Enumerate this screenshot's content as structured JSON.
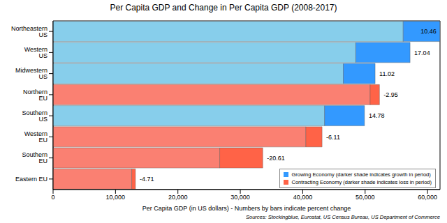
{
  "chart_data": {
    "type": "bar",
    "orientation": "horizontal",
    "stacked": true,
    "title": "Per Capita GDP and Change in Per Capita GDP (2008-2017)",
    "x_label": "Per Capita GDP (in US dollars) - Numbers by bars indicate percent change",
    "source": "Sources: Stockingblue, Eurostat, US Census Bureau, US Department of Commerce",
    "categories": [
      "Northeastern US",
      "Western US",
      "Midwestern US",
      "Northern EU",
      "Southern US",
      "Western EU",
      "Southern EU",
      "Eastern EU"
    ],
    "series": [
      {
        "name": "Growing Economy (darker shade indicates growth in period)",
        "color": "#3399ff",
        "base": {
          "color": "#87ceeb",
          "values": [
            56100,
            48500,
            46500,
            null,
            43500,
            null,
            null,
            null
          ]
        },
        "values": [
          5870,
          8700,
          5100,
          null,
          6400,
          null,
          null,
          null
        ]
      },
      {
        "name": "Contracting Economy (darker shade indicates loss in period)",
        "color": "#ff6347",
        "base": {
          "color": "#fa8072",
          "values": [
            null,
            null,
            null,
            50800,
            null,
            40500,
            26700,
            12600
          ]
        },
        "values": [
          null,
          null,
          null,
          1500,
          null,
          2600,
          6900,
          600
        ]
      }
    ],
    "percent_change": [
      10.46,
      17.04,
      11.02,
      -2.95,
      14.78,
      -6.11,
      -20.61,
      -4.71
    ],
    "xlim": [
      0,
      62000
    ],
    "xticks": [
      0,
      {
        "value": 10000,
        "label": "10,000"
      },
      {
        "value": 20000,
        "label": "20,000"
      },
      {
        "value": 30000,
        "label": "30,000"
      },
      {
        "value": 40000,
        "label": "40,000"
      },
      {
        "value": 50000,
        "label": "50,000"
      },
      {
        "value": 60000,
        "label": "60,000"
      }
    ],
    "grid": false,
    "legend": "lower right"
  }
}
